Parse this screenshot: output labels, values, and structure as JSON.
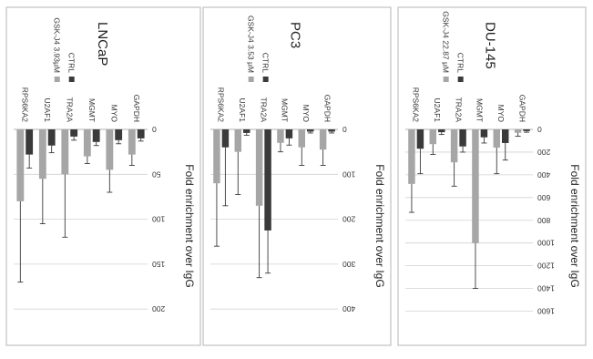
{
  "colors": {
    "ctrl": "#3a3a3a",
    "treat": "#a6a6a6"
  },
  "chart_data": [
    {
      "type": "bar",
      "title": "LNCaP",
      "ylabel": "Fold enrichment over IgG",
      "categories": [
        "GAPDH",
        "MYO",
        "MGMT",
        "TRA2A",
        "U2AF1",
        "RPS6KA2"
      ],
      "yticks": [
        0,
        50,
        100,
        150,
        200
      ],
      "ylim": [
        0,
        215
      ],
      "grid": true,
      "orientation": "figure printed rotated 180 degrees",
      "series": [
        {
          "name": "CTRL",
          "values": [
            10,
            12,
            14,
            8,
            18,
            28
          ],
          "errors": [
            3,
            4,
            4,
            4,
            8,
            15
          ]
        },
        {
          "name": "GSK-J4 3.93μM",
          "values": [
            28,
            45,
            30,
            50,
            55,
            80
          ],
          "errors": [
            12,
            25,
            8,
            70,
            50,
            90
          ]
        }
      ]
    },
    {
      "type": "bar",
      "title": "PC3",
      "ylabel": "Fold enrichment over IgG",
      "categories": [
        "GAPDH",
        "MYO",
        "MGMT",
        "TRA2A",
        "U2AF1",
        "RPS6KA2"
      ],
      "yticks": [
        0,
        100,
        200,
        300,
        400
      ],
      "ylim": [
        0,
        430
      ],
      "grid": true,
      "orientation": "figure printed rotated 180 degrees",
      "series": [
        {
          "name": "CTRL",
          "values": [
            5,
            5,
            20,
            225,
            8,
            40
          ],
          "errors": [
            3,
            3,
            15,
            95,
            5,
            130
          ]
        },
        {
          "name": "GSK-J4 3.53 μM",
          "values": [
            45,
            40,
            30,
            170,
            50,
            120
          ],
          "errors": [
            35,
            40,
            20,
            160,
            95,
            140
          ]
        }
      ]
    },
    {
      "type": "bar",
      "title": "DU-145",
      "ylabel": "Fold enrichment over IgG",
      "categories": [
        "GAPDH",
        "MYO",
        "MGMT",
        "TRA2A",
        "U2AF1",
        "RPS6KA2"
      ],
      "yticks": [
        0,
        200,
        400,
        600,
        800,
        1000,
        1200,
        1400,
        1600
      ],
      "ylim": [
        0,
        1700
      ],
      "grid": true,
      "orientation": "figure printed rotated 180 degrees",
      "series": [
        {
          "name": "CTRL",
          "values": [
            15,
            120,
            70,
            150,
            25,
            170
          ],
          "errors": [
            10,
            150,
            50,
            50,
            20,
            220
          ]
        },
        {
          "name": "GSK-J4 22.87 μM",
          "values": [
            30,
            160,
            1000,
            290,
            130,
            480
          ],
          "errors": [
            30,
            230,
            400,
            210,
            90,
            250
          ]
        }
      ]
    }
  ]
}
